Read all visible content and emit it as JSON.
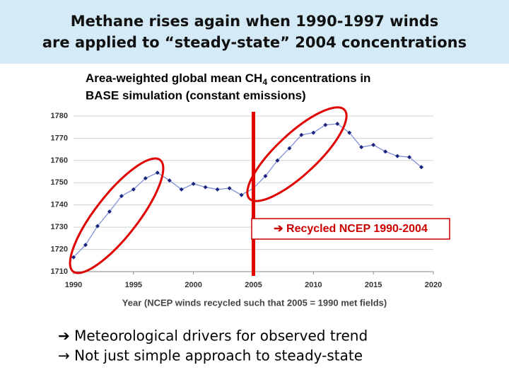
{
  "chart_data": {
    "type": "line",
    "title": [
      "Methane rises again when 1990-1997 winds",
      "are applied to “steady-state” 2004 concentrations"
    ],
    "subtitle": [
      "Area-weighted global mean CH",
      "4",
      " concentrations in",
      "BASE simulation (constant emissions)"
    ],
    "x_label": "Year (NCEP winds recycled such that 2005 = 1990 met fields)",
    "x": [
      1990,
      1991,
      1992,
      1993,
      1994,
      1995,
      1996,
      1997,
      1998,
      1999,
      2000,
      2001,
      2002,
      2003,
      2004,
      2005,
      2006,
      2007,
      2008,
      2009,
      2010,
      2011,
      2012,
      2013,
      2014,
      2015,
      2016,
      2017,
      2018,
      2019
    ],
    "values": [
      1716.5,
      1722,
      1730.5,
      1737,
      1744,
      1747,
      1752,
      1754.5,
      1751,
      1747,
      1749.5,
      1748,
      1747,
      1747.5,
      1744.5,
      1747.5,
      1753,
      1760,
      1765.5,
      1771.5,
      1772.5,
      1776,
      1776.5,
      1772.5,
      1766,
      1767,
      1764,
      1762,
      1761.5,
      1757
    ],
    "color": "#7f8fd6",
    "marker_color": "#1a237e",
    "xlim": [
      1990,
      2020
    ],
    "xticks": [
      1990,
      1995,
      2000,
      2005,
      2010,
      2015,
      2020
    ],
    "ylim": [
      1710,
      1780
    ],
    "yticks": [
      1710,
      1720,
      1730,
      1740,
      1750,
      1760,
      1770,
      1780
    ],
    "grid": true,
    "reference_line": {
      "x": 2005,
      "color": "#e00000"
    },
    "annotation": "➔ Recycled NCEP 1990-2004",
    "notes": [
      "➔ Meteorological drivers for observed trend",
      "→ Not just simple approach to steady-state"
    ]
  }
}
